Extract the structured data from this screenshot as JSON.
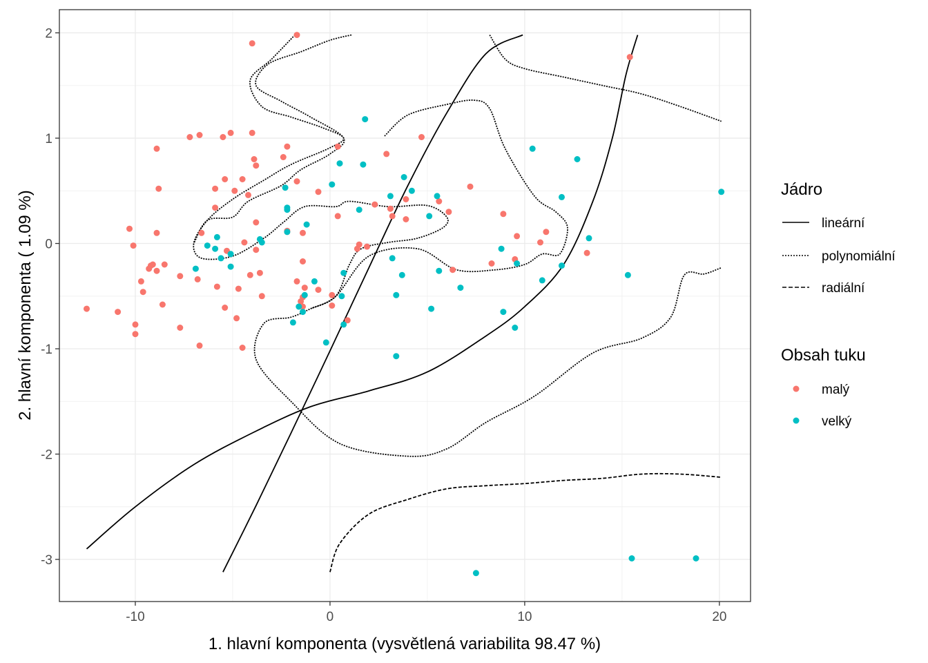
{
  "chart_data": {
    "type": "scatter",
    "xlabel": "1. hlavní komponenta (vysvětlená variabilita 98.47 %)",
    "ylabel": "2. hlavní komponenta ( 1.09 %)",
    "xlim": [
      -13.9,
      21.6
    ],
    "ylim": [
      -3.4,
      2.22
    ],
    "x_ticks": [
      -10,
      0,
      10,
      20
    ],
    "x_tick_labels": [
      "-10",
      "0",
      "10",
      "20"
    ],
    "y_ticks": [
      2,
      1,
      0,
      -1,
      -2,
      -3
    ],
    "y_tick_labels": [
      "2",
      "1",
      "0",
      "-1",
      "-2",
      "-3"
    ],
    "grid": true,
    "legend_position": "right",
    "legends": {
      "kernel": {
        "title": "Jádro",
        "items": [
          {
            "label": "lineární",
            "dash": "solid"
          },
          {
            "label": "polynomiální",
            "dash": "dotted"
          },
          {
            "label": "radiální",
            "dash": "dashed"
          }
        ]
      },
      "fat": {
        "title": "Obsah tuku",
        "items": [
          {
            "label": "malý",
            "color": "#F8766D"
          },
          {
            "label": "velký",
            "color": "#00BFC4"
          }
        ]
      }
    },
    "series": [
      {
        "name": "malý",
        "color": "#F8766D",
        "points": [
          [
            -12.5,
            -0.62
          ],
          [
            -10.9,
            -0.65
          ],
          [
            -10.3,
            0.14
          ],
          [
            -10.1,
            -0.02
          ],
          [
            -10,
            -0.77
          ],
          [
            -10,
            -0.86
          ],
          [
            -9.7,
            -0.36
          ],
          [
            -9.6,
            -0.46
          ],
          [
            -9.3,
            -0.24
          ],
          [
            -9.2,
            -0.21
          ],
          [
            -9.1,
            -0.2
          ],
          [
            -8.9,
            0.9
          ],
          [
            -8.9,
            0.1
          ],
          [
            -8.8,
            0.52
          ],
          [
            -8.9,
            -0.26
          ],
          [
            -8.5,
            -0.2
          ],
          [
            -8.6,
            -0.58
          ],
          [
            -7.7,
            -0.31
          ],
          [
            -7.7,
            -0.8
          ],
          [
            -7.2,
            1.01
          ],
          [
            -6.7,
            1.03
          ],
          [
            -6.8,
            -0.34
          ],
          [
            -6.7,
            -0.97
          ],
          [
            -6.6,
            0.1
          ],
          [
            -5.9,
            0.52
          ],
          [
            -5.9,
            0.34
          ],
          [
            -5.8,
            -0.41
          ],
          [
            -5.5,
            1.01
          ],
          [
            -5.3,
            -0.07
          ],
          [
            -5.4,
            0.61
          ],
          [
            -5.4,
            -0.61
          ],
          [
            -5.1,
            1.05
          ],
          [
            -4.9,
            0.5
          ],
          [
            -4.8,
            -0.71
          ],
          [
            -4.7,
            -0.43
          ],
          [
            -4.5,
            0.61
          ],
          [
            -4.5,
            -0.99
          ],
          [
            -4.4,
            0.01
          ],
          [
            -4.2,
            0.46
          ],
          [
            -4.1,
            -0.3
          ],
          [
            -4,
            1.9
          ],
          [
            -4,
            1.05
          ],
          [
            -3.9,
            0.8
          ],
          [
            -3.8,
            0.74
          ],
          [
            -3.8,
            0.2
          ],
          [
            -3.8,
            -0.06
          ],
          [
            -3.6,
            -0.28
          ],
          [
            -3.5,
            -0.5
          ],
          [
            -2.4,
            0.82
          ],
          [
            -2.2,
            0.92
          ],
          [
            -2.2,
            0.12
          ],
          [
            -2.2,
            0.11
          ],
          [
            -1.7,
            0.59
          ],
          [
            -1.7,
            -0.36
          ],
          [
            -1.7,
            1.98
          ],
          [
            -1.5,
            -0.55
          ],
          [
            -1.4,
            -0.51
          ],
          [
            -1.4,
            -0.6
          ],
          [
            -1.3,
            -0.42
          ],
          [
            -1.4,
            0.1
          ],
          [
            -1.4,
            -0.17
          ],
          [
            -0.6,
            0.49
          ],
          [
            -0.6,
            -0.44
          ],
          [
            0.1,
            -0.59
          ],
          [
            0.1,
            -0.49
          ],
          [
            0.4,
            0.92
          ],
          [
            0.4,
            0.26
          ],
          [
            0.9,
            -0.73
          ],
          [
            1.4,
            -0.05
          ],
          [
            1.5,
            -0.01
          ],
          [
            1.9,
            -0.03
          ],
          [
            2.3,
            0.37
          ],
          [
            2.9,
            0.85
          ],
          [
            3.1,
            0.33
          ],
          [
            3.2,
            0.26
          ],
          [
            3.9,
            0.42
          ],
          [
            3.9,
            0.23
          ],
          [
            4.7,
            1.01
          ],
          [
            5.6,
            0.4
          ],
          [
            6.1,
            0.3
          ],
          [
            6.3,
            -0.25
          ],
          [
            7.2,
            0.54
          ],
          [
            8.3,
            -0.19
          ],
          [
            8.9,
            0.28
          ],
          [
            9.6,
            0.07
          ],
          [
            9.5,
            -0.15
          ],
          [
            10.8,
            0.01
          ],
          [
            11.1,
            0.11
          ],
          [
            13.2,
            -0.09
          ],
          [
            15.4,
            1.77
          ]
        ]
      },
      {
        "name": "velký",
        "color": "#00BFC4",
        "points": [
          [
            -6.9,
            -0.24
          ],
          [
            -6.3,
            -0.02
          ],
          [
            -5.9,
            -0.05
          ],
          [
            -5.8,
            0.06
          ],
          [
            -5.6,
            -0.14
          ],
          [
            -5.1,
            -0.1
          ],
          [
            -5.1,
            -0.22
          ],
          [
            -3.6,
            0.04
          ],
          [
            -3.5,
            0.01
          ],
          [
            -2.3,
            0.53
          ],
          [
            -2.2,
            0.34
          ],
          [
            -2.2,
            0.32
          ],
          [
            -2.2,
            0.11
          ],
          [
            -1.9,
            -0.75
          ],
          [
            -1.6,
            -0.6
          ],
          [
            -1.4,
            -0.65
          ],
          [
            -1.3,
            -0.49
          ],
          [
            -1.2,
            0.18
          ],
          [
            -0.8,
            -0.36
          ],
          [
            -0.2,
            -0.94
          ],
          [
            0.1,
            0.56
          ],
          [
            0.5,
            0.76
          ],
          [
            0.6,
            -0.5
          ],
          [
            0.7,
            -0.28
          ],
          [
            0.7,
            -0.77
          ],
          [
            1.5,
            0.32
          ],
          [
            1.7,
            0.75
          ],
          [
            1.8,
            1.18
          ],
          [
            3.1,
            0.45
          ],
          [
            3.2,
            -0.14
          ],
          [
            3.4,
            -0.49
          ],
          [
            3.4,
            -1.07
          ],
          [
            3.7,
            -0.3
          ],
          [
            3.8,
            0.63
          ],
          [
            4.2,
            0.5
          ],
          [
            5.1,
            0.26
          ],
          [
            5.2,
            -0.62
          ],
          [
            5.5,
            0.45
          ],
          [
            5.6,
            -0.26
          ],
          [
            6.7,
            -0.42
          ],
          [
            7.5,
            -3.13
          ],
          [
            8.8,
            -0.05
          ],
          [
            8.9,
            -0.65
          ],
          [
            9.5,
            -0.8
          ],
          [
            9.6,
            -0.19
          ],
          [
            10.4,
            0.9
          ],
          [
            10.9,
            -0.35
          ],
          [
            11.9,
            -0.21
          ],
          [
            11.9,
            0.44
          ],
          [
            12.7,
            0.8
          ],
          [
            13.3,
            0.05
          ],
          [
            15.3,
            -0.3
          ],
          [
            15.5,
            -2.99
          ],
          [
            18.8,
            -2.99
          ],
          [
            20.1,
            0.49
          ]
        ]
      }
    ],
    "curves": [
      {
        "kernel": "lineární",
        "dash": "solid",
        "segments": [
          [
            [
              -5.5,
              -3.12
            ],
            [
              -3.8,
              -2.49
            ],
            [
              -2,
              -1.8
            ],
            [
              0,
              -1.02
            ],
            [
              2,
              -0.23
            ],
            [
              4,
              0.55
            ],
            [
              6,
              1.24
            ],
            [
              8,
              1.8
            ],
            [
              9.9,
              1.98
            ]
          ],
          [
            [
              -12.5,
              -2.9
            ],
            [
              -10,
              -2.5
            ],
            [
              -7,
              -2.1
            ],
            [
              -4,
              -1.8
            ],
            [
              -1,
              -1.55
            ],
            [
              2,
              -1.4
            ],
            [
              5,
              -1.22
            ],
            [
              8,
              -0.88
            ],
            [
              10,
              -0.6
            ],
            [
              12,
              -0.2
            ],
            [
              13.5,
              0.4
            ],
            [
              14.5,
              1
            ],
            [
              15.2,
              1.6
            ],
            [
              15.8,
              1.98
            ]
          ]
        ]
      },
      {
        "kernel": "polynomiální",
        "dash": "dotted",
        "segments": [
          [
            [
              8.2,
              1.98
            ],
            [
              9,
              1.75
            ],
            [
              10,
              1.66
            ],
            [
              12,
              1.58
            ],
            [
              14,
              1.5
            ],
            [
              16,
              1.42
            ],
            [
              18,
              1.3
            ],
            [
              20.1,
              1.16
            ]
          ],
          [
            [
              -1.8,
              1.98
            ],
            [
              -3,
              1.75
            ],
            [
              -4.1,
              1.55
            ],
            [
              -3.5,
              1.3
            ],
            [
              -2,
              1.2
            ],
            [
              -0.4,
              1.1
            ],
            [
              0.7,
              1
            ],
            [
              -0.1,
              0.9
            ],
            [
              -2,
              0.75
            ],
            [
              -3.4,
              0.6
            ],
            [
              -5,
              0.42
            ],
            [
              -6.3,
              0.22
            ],
            [
              -7,
              0
            ],
            [
              -6.6,
              -0.14
            ],
            [
              -5,
              -0.12
            ],
            [
              -3.4,
              0.05
            ],
            [
              -2.4,
              0.2
            ],
            [
              -1.3,
              0.35
            ],
            [
              0.3,
              0.35
            ],
            [
              1,
              0.4
            ],
            [
              3,
              0.35
            ],
            [
              5,
              0.36
            ],
            [
              6,
              0.25
            ],
            [
              5.8,
              0.15
            ],
            [
              4.5,
              0.05
            ],
            [
              3,
              0.01
            ],
            [
              1.6,
              -0.05
            ],
            [
              1,
              -0.2
            ],
            [
              0.3,
              -0.5
            ],
            [
              -1,
              -0.62
            ],
            [
              -2,
              -0.7
            ],
            [
              -3.4,
              -0.76
            ],
            [
              -3.8,
              -1.1
            ],
            [
              -2,
              -1.5
            ],
            [
              0.5,
              -1.9
            ],
            [
              4,
              -2.02
            ],
            [
              6,
              -1.95
            ],
            [
              8,
              -1.7
            ],
            [
              10.5,
              -1.45
            ],
            [
              13.5,
              -1.04
            ],
            [
              16,
              -0.9
            ],
            [
              17.5,
              -0.7
            ],
            [
              18.2,
              -0.3
            ],
            [
              19.2,
              -0.29
            ],
            [
              20.1,
              -0.23
            ]
          ],
          [
            [
              1.1,
              1.98
            ],
            [
              0,
              1.93
            ],
            [
              -1.5,
              1.82
            ],
            [
              -3.2,
              1.7
            ],
            [
              -3.8,
              1.5
            ],
            [
              -2.5,
              1.35
            ],
            [
              -1,
              1.2
            ],
            [
              0.7,
              1
            ],
            [
              0,
              0.85
            ],
            [
              -1.5,
              0.7
            ],
            [
              -2.5,
              0.55
            ],
            [
              -4.2,
              0.4
            ],
            [
              -5,
              0.25
            ],
            [
              -6.3,
              0.22
            ],
            [
              -7,
              0
            ]
          ],
          [
            [
              2.8,
              1.02
            ],
            [
              4,
              1.22
            ],
            [
              6,
              1.32
            ],
            [
              7.4,
              1.36
            ],
            [
              8.2,
              1.28
            ],
            [
              9,
              0.9
            ],
            [
              10.5,
              0.45
            ],
            [
              11.6,
              0.3
            ],
            [
              12.2,
              0.15
            ],
            [
              11.8,
              -0.1
            ],
            [
              10.9,
              -0.1
            ],
            [
              10,
              -0.2
            ],
            [
              8.5,
              -0.25
            ],
            [
              6.5,
              -0.25
            ],
            [
              4.5,
              -0.05
            ],
            [
              2,
              -0.12
            ],
            [
              0.3,
              -0.5
            ],
            [
              -1,
              -0.62
            ]
          ]
        ]
      },
      {
        "kernel": "radiální",
        "dash": "dashed",
        "segments": [
          [
            [
              0,
              -3.12
            ],
            [
              0.5,
              -2.85
            ],
            [
              2,
              -2.57
            ],
            [
              4,
              -2.43
            ],
            [
              6,
              -2.33
            ],
            [
              8,
              -2.3
            ],
            [
              10,
              -2.28
            ],
            [
              12,
              -2.25
            ],
            [
              14,
              -2.23
            ],
            [
              16,
              -2.19
            ],
            [
              18,
              -2.19
            ],
            [
              20.1,
              -2.22
            ]
          ]
        ]
      }
    ]
  }
}
